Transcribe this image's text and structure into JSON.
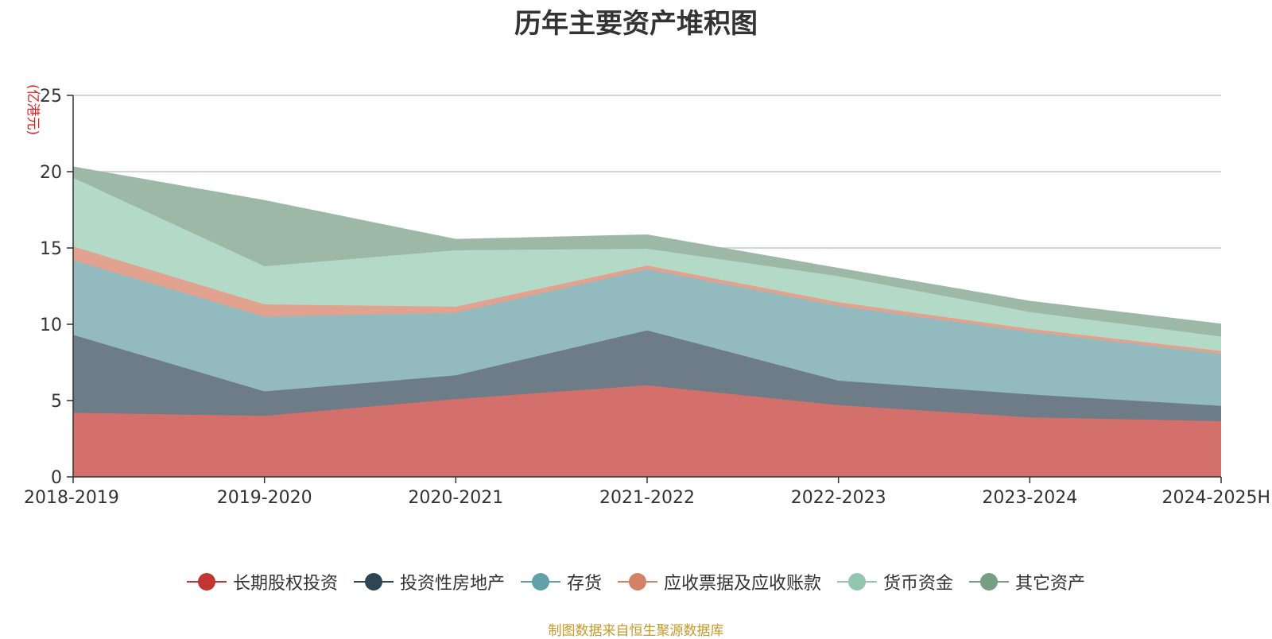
{
  "chart_data": {
    "type": "area",
    "stacked": true,
    "title": "历年主要资产堆积图",
    "ylabel": "(亿港元)",
    "xlabel": "",
    "categories": [
      "2018-2019",
      "2019-2020",
      "2020-2021",
      "2021-2022",
      "2022-2023",
      "2023-2024",
      "2024-2025H"
    ],
    "ylim": [
      0,
      25
    ],
    "yticks": [
      0,
      5,
      10,
      15,
      20,
      25
    ],
    "grid": true,
    "legend_position": "bottom",
    "series": [
      {
        "name": "长期股权投资",
        "color": "#c23531",
        "fill": "#d3706c",
        "values": [
          4.2,
          4.0,
          5.1,
          6.0,
          4.7,
          3.9,
          3.65
        ]
      },
      {
        "name": "投资性房地产",
        "color": "#2f4554",
        "fill": "#6e7c88",
        "values": [
          5.1,
          1.6,
          1.55,
          3.6,
          1.6,
          1.5,
          1.0
        ]
      },
      {
        "name": "存货",
        "color": "#61a0a8",
        "fill": "#92babf",
        "values": [
          4.9,
          4.9,
          4.1,
          4.0,
          4.9,
          4.1,
          3.4
        ]
      },
      {
        "name": "应收票据及应收账款",
        "color": "#d48265",
        "fill": "#e1a38f",
        "values": [
          0.9,
          0.8,
          0.4,
          0.25,
          0.25,
          0.2,
          0.2
        ]
      },
      {
        "name": "货币资金",
        "color": "#91c7ae",
        "fill": "#b2dac7",
        "values": [
          4.5,
          2.5,
          3.7,
          1.1,
          1.7,
          1.1,
          0.95
        ]
      },
      {
        "name": "其它资产",
        "color": "#749f83",
        "fill": "#9db8a6",
        "values": [
          0.7,
          4.3,
          0.7,
          0.9,
          0.5,
          0.7,
          0.8
        ]
      }
    ]
  },
  "footer": {
    "source": "制图数据来自恒生聚源数据库"
  }
}
